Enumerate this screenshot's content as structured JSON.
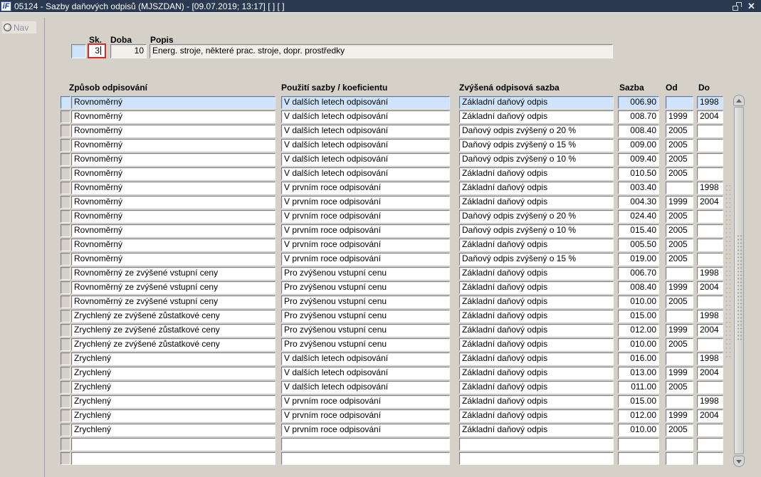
{
  "window": {
    "title": "05124 - Sazby daňových odpisů (MJSZDAN) - [09.07.2019; 13:17]  [ ]  [ ]",
    "icon_text": "iF"
  },
  "sidebar": {
    "nav_label": "Nav"
  },
  "form": {
    "sk_label": "Sk.",
    "sk_value": "3",
    "doba_label": "Doba",
    "doba_value": "10",
    "popis_label": "Popis",
    "popis_value": "Energ. stroje, některé prac. stroje, dopr. prostředky"
  },
  "table": {
    "headers": [
      "Způsob odpisování",
      "Použití sazby / koeficientu",
      "Zvýšená odpisová sazba",
      "Sazba",
      "Od",
      "Do"
    ],
    "selected_row_index": 0,
    "rows": [
      [
        "Rovnoměrný",
        "V dalších letech odpisování",
        "Základní daňový odpis",
        "006.90",
        "",
        "1998"
      ],
      [
        "Rovnoměrný",
        "V dalších letech odpisování",
        "Základní daňový odpis",
        "008.70",
        "1999",
        "2004"
      ],
      [
        "Rovnoměrný",
        "V dalších letech odpisování",
        "Daňový odpis zvýšený o 20 %",
        "008.40",
        "2005",
        ""
      ],
      [
        "Rovnoměrný",
        "V dalších letech odpisování",
        "Daňový odpis zvýšený o 15 %",
        "009.00",
        "2005",
        ""
      ],
      [
        "Rovnoměrný",
        "V dalších letech odpisování",
        "Daňový odpis zvýšený o 10 %",
        "009.40",
        "2005",
        ""
      ],
      [
        "Rovnoměrný",
        "V dalších letech odpisování",
        "Základní daňový odpis",
        "010.50",
        "2005",
        ""
      ],
      [
        "Rovnoměrný",
        "V prvním roce odpisování",
        "Základní daňový odpis",
        "003.40",
        "",
        "1998"
      ],
      [
        "Rovnoměrný",
        "V prvním roce odpisování",
        "Základní daňový odpis",
        "004.30",
        "1999",
        "2004"
      ],
      [
        "Rovnoměrný",
        "V prvním roce odpisování",
        "Daňový odpis zvýšený o 20 %",
        "024.40",
        "2005",
        ""
      ],
      [
        "Rovnoměrný",
        "V prvním roce odpisování",
        "Daňový odpis zvýšený o 10 %",
        "015.40",
        "2005",
        ""
      ],
      [
        "Rovnoměrný",
        "V prvním roce odpisování",
        "Základní daňový odpis",
        "005.50",
        "2005",
        ""
      ],
      [
        "Rovnoměrný",
        "V prvním roce odpisování",
        "Daňový odpis zvýšený o 15 %",
        "019.00",
        "2005",
        ""
      ],
      [
        "Rovnoměrný ze zvýšené vstupní ceny",
        "Pro zvýšenou vstupní cenu",
        "Základní daňový odpis",
        "006.70",
        "",
        "1998"
      ],
      [
        "Rovnoměrný ze zvýšené vstupní ceny",
        "Pro zvýšenou vstupní cenu",
        "Základní daňový odpis",
        "008.40",
        "1999",
        "2004"
      ],
      [
        "Rovnoměrný ze zvýšené vstupní ceny",
        "Pro zvýšenou vstupní cenu",
        "Základní daňový odpis",
        "010.00",
        "2005",
        ""
      ],
      [
        "Zrychlený ze zvýšené zůstatkové ceny",
        "Pro zvýšenou vstupní cenu",
        "Základní daňový odpis",
        "015.00",
        "",
        "1998"
      ],
      [
        "Zrychlený ze zvýšené zůstatkové ceny",
        "Pro zvýšenou vstupní cenu",
        "Základní daňový odpis",
        "012.00",
        "1999",
        "2004"
      ],
      [
        "Zrychlený ze zvýšené zůstatkové ceny",
        "Pro zvýšenou vstupní cenu",
        "Základní daňový odpis",
        "010.00",
        "2005",
        ""
      ],
      [
        "Zrychlený",
        "V dalších letech odpisování",
        "Základní daňový odpis",
        "016.00",
        "",
        "1998"
      ],
      [
        "Zrychlený",
        "V dalších letech odpisování",
        "Základní daňový odpis",
        "013.00",
        "1999",
        "2004"
      ],
      [
        "Zrychlený",
        "V dalších letech odpisování",
        "Základní daňový odpis",
        "011.00",
        "2005",
        ""
      ],
      [
        "Zrychlený",
        "V prvním roce odpisování",
        "Základní daňový odpis",
        "015.00",
        "",
        "1998"
      ],
      [
        "Zrychlený",
        "V prvním roce odpisování",
        "Základní daňový odpis",
        "012.00",
        "1999",
        "2004"
      ],
      [
        "Zrychlený",
        "V prvním roce odpisování",
        "Základní daňový odpis",
        "010.00",
        "2005",
        ""
      ],
      [
        "",
        "",
        "",
        "",
        "",
        ""
      ],
      [
        "",
        "",
        "",
        "",
        "",
        ""
      ]
    ]
  },
  "colors": {
    "titlebar": "#2a3950",
    "background": "#d5d1c9",
    "selected_row": "#cfe4fb",
    "focus_border": "#d42a2a"
  }
}
